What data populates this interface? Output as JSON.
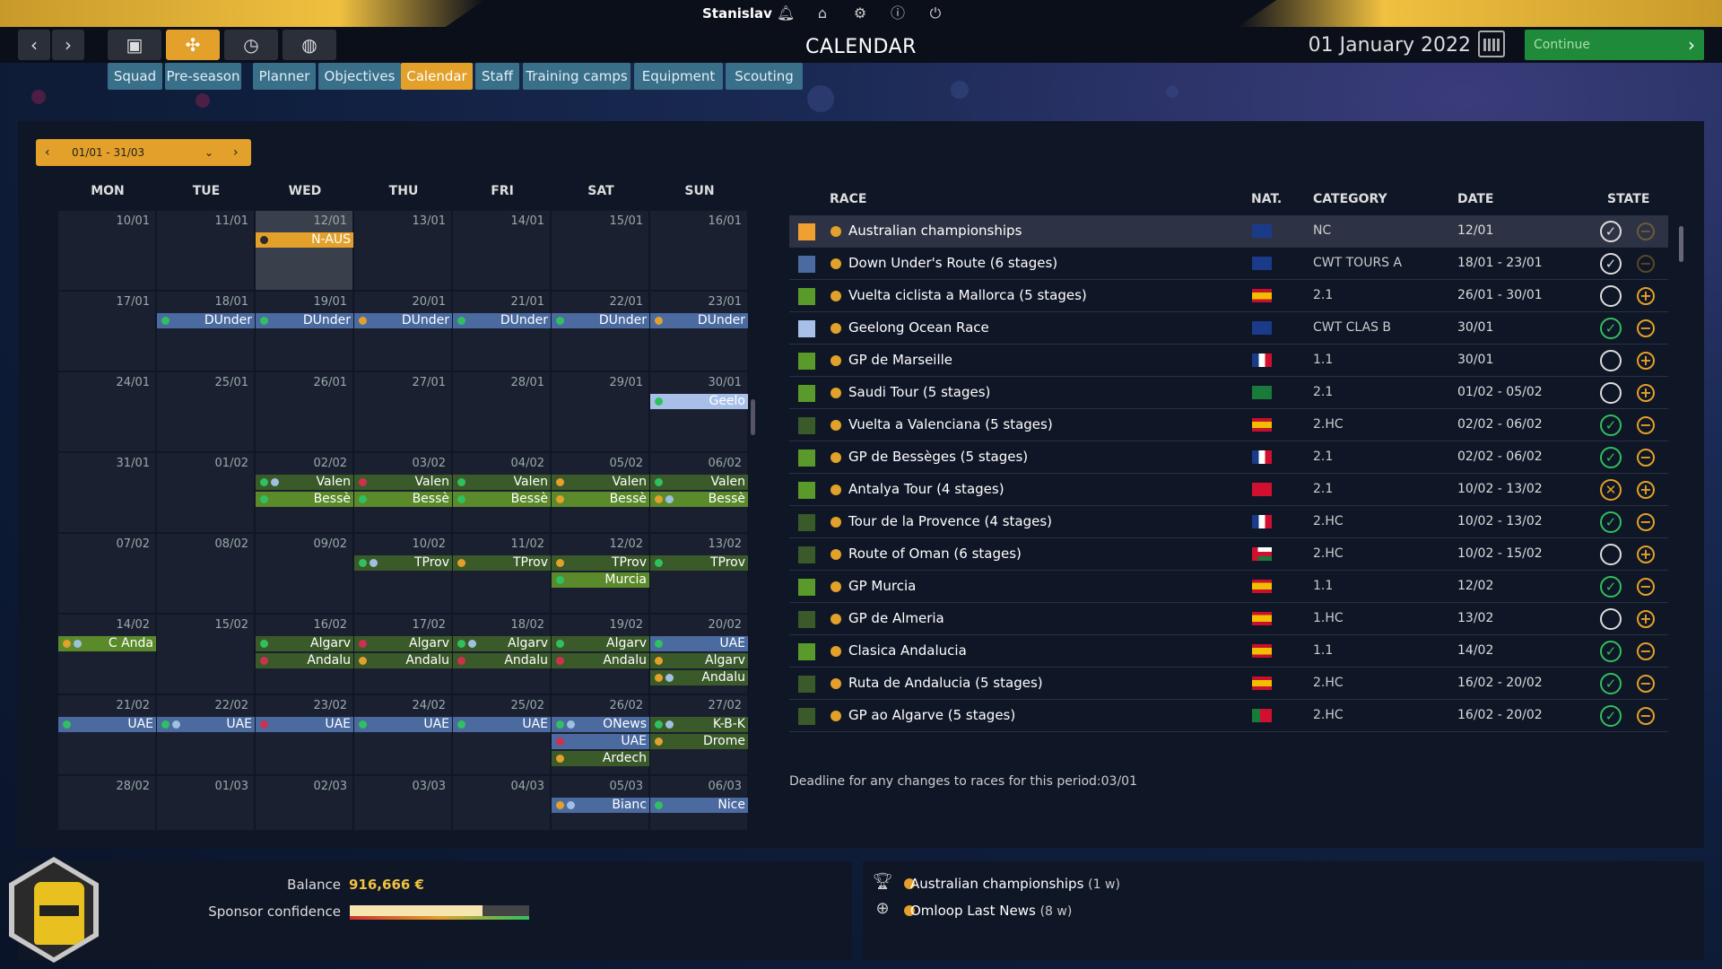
{
  "topbar": {
    "user": "Stanislav",
    "icons": [
      "bell-icon",
      "home-icon",
      "gear-icon",
      "info-icon",
      "power-icon"
    ]
  },
  "nav": {
    "buttons": [
      "back-icon",
      "forward-icon",
      "briefcase-icon",
      "team-icon",
      "stopwatch-icon",
      "globe-icon"
    ],
    "active": "team-icon"
  },
  "page": {
    "title": "CALENDAR",
    "date": "01 January 2022",
    "continue_label": "Continue"
  },
  "tabs": [
    {
      "label": "Squad"
    },
    {
      "label": "Pre-season"
    },
    {
      "label": "Planner"
    },
    {
      "label": "Objectives"
    },
    {
      "label": "Calendar",
      "active": true
    },
    {
      "label": "Staff"
    },
    {
      "label": "Training camps"
    },
    {
      "label": "Equipment"
    },
    {
      "label": "Scouting"
    }
  ],
  "calendar": {
    "period": "01/01 - 31/03",
    "weekdays": [
      "MON",
      "TUE",
      "WED",
      "THU",
      "FRI",
      "SAT",
      "SUN"
    ],
    "weeks": [
      [
        "10/01",
        "11/01",
        "12/01",
        "13/01",
        "14/01",
        "15/01",
        "16/01"
      ],
      [
        "17/01",
        "18/01",
        "19/01",
        "20/01",
        "21/01",
        "22/01",
        "23/01"
      ],
      [
        "24/01",
        "25/01",
        "26/01",
        "27/01",
        "28/01",
        "29/01",
        "30/01"
      ],
      [
        "31/01",
        "01/02",
        "02/02",
        "03/02",
        "04/02",
        "05/02",
        "06/02"
      ],
      [
        "07/02",
        "08/02",
        "09/02",
        "10/02",
        "11/02",
        "12/02",
        "13/02"
      ],
      [
        "14/02",
        "15/02",
        "16/02",
        "17/02",
        "18/02",
        "19/02",
        "20/02"
      ],
      [
        "21/02",
        "22/02",
        "23/02",
        "24/02",
        "25/02",
        "26/02",
        "27/02"
      ],
      [
        "28/02",
        "01/03",
        "02/03",
        "03/03",
        "04/03",
        "05/03",
        "06/03"
      ]
    ],
    "today": [
      0,
      2
    ],
    "events": [
      {
        "w": 0,
        "d": 2,
        "row": 0,
        "label": "N-AUS",
        "color": "#e3a02a",
        "dots": [
          "#2a2a2a"
        ]
      },
      {
        "w": 1,
        "d": 1,
        "row": 0,
        "label": "DUnder",
        "color": "#4a6aa0",
        "dots": [
          "#30c060"
        ]
      },
      {
        "w": 1,
        "d": 2,
        "row": 0,
        "label": "DUnder",
        "color": "#4a6aa0",
        "dots": [
          "#30c060"
        ]
      },
      {
        "w": 1,
        "d": 3,
        "row": 0,
        "label": "DUnder",
        "color": "#4a6aa0",
        "dots": [
          "#e3a02a"
        ]
      },
      {
        "w": 1,
        "d": 4,
        "row": 0,
        "label": "DUnder",
        "color": "#4a6aa0",
        "dots": [
          "#30c060"
        ]
      },
      {
        "w": 1,
        "d": 5,
        "row": 0,
        "label": "DUnder",
        "color": "#4a6aa0",
        "dots": [
          "#30c060"
        ]
      },
      {
        "w": 1,
        "d": 6,
        "row": 0,
        "label": "DUnder",
        "color": "#4a6aa0",
        "dots": [
          "#e3a02a"
        ]
      },
      {
        "w": 2,
        "d": 6,
        "row": 0,
        "label": "Geelo",
        "color": "#a8c0e8",
        "dots": [
          "#30c060"
        ]
      },
      {
        "w": 3,
        "d": 2,
        "row": 0,
        "label": "Valen",
        "color": "#3a5a2a",
        "dots": [
          "#30c060",
          "#a0c0e0"
        ]
      },
      {
        "w": 3,
        "d": 3,
        "row": 0,
        "label": "Valen",
        "color": "#3a5a2a",
        "dots": [
          "#d03050"
        ]
      },
      {
        "w": 3,
        "d": 4,
        "row": 0,
        "label": "Valen",
        "color": "#3a5a2a",
        "dots": [
          "#30c060"
        ]
      },
      {
        "w": 3,
        "d": 5,
        "row": 0,
        "label": "Valen",
        "color": "#3a5a2a",
        "dots": [
          "#e3a02a"
        ]
      },
      {
        "w": 3,
        "d": 6,
        "row": 0,
        "label": "Valen",
        "color": "#3a5a2a",
        "dots": [
          "#30c060"
        ]
      },
      {
        "w": 3,
        "d": 2,
        "row": 1,
        "label": "Bessè",
        "color": "#5a8a2a",
        "dots": [
          "#30c060"
        ]
      },
      {
        "w": 3,
        "d": 3,
        "row": 1,
        "label": "Bessè",
        "color": "#5a8a2a",
        "dots": [
          "#30c060"
        ]
      },
      {
        "w": 3,
        "d": 4,
        "row": 1,
        "label": "Bessè",
        "color": "#5a8a2a",
        "dots": [
          "#30c060"
        ]
      },
      {
        "w": 3,
        "d": 5,
        "row": 1,
        "label": "Bessè",
        "color": "#5a8a2a",
        "dots": [
          "#e3a02a"
        ]
      },
      {
        "w": 3,
        "d": 6,
        "row": 1,
        "label": "Bessè",
        "color": "#5a8a2a",
        "dots": [
          "#e3a02a",
          "#a0c0e0"
        ]
      },
      {
        "w": 4,
        "d": 3,
        "row": 0,
        "label": "TProv",
        "color": "#3a5a2a",
        "dots": [
          "#30c060",
          "#a0c0e0"
        ]
      },
      {
        "w": 4,
        "d": 4,
        "row": 0,
        "label": "TProv",
        "color": "#3a5a2a",
        "dots": [
          "#e3a02a"
        ]
      },
      {
        "w": 4,
        "d": 5,
        "row": 0,
        "label": "TProv",
        "color": "#3a5a2a",
        "dots": [
          "#e3a02a"
        ]
      },
      {
        "w": 4,
        "d": 6,
        "row": 0,
        "label": "TProv",
        "color": "#3a5a2a",
        "dots": [
          "#30c060"
        ]
      },
      {
        "w": 4,
        "d": 5,
        "row": 1,
        "label": "Murcia",
        "color": "#5a8a2a",
        "dots": [
          "#30c060"
        ]
      },
      {
        "w": 5,
        "d": 0,
        "row": 0,
        "label": "C Anda",
        "color": "#5a8a2a",
        "dots": [
          "#e3a02a",
          "#a0c0e0"
        ]
      },
      {
        "w": 5,
        "d": 2,
        "row": 0,
        "label": "Algarv",
        "color": "#3a5a2a",
        "dots": [
          "#30c060"
        ]
      },
      {
        "w": 5,
        "d": 3,
        "row": 0,
        "label": "Algarv",
        "color": "#3a5a2a",
        "dots": [
          "#d03050"
        ]
      },
      {
        "w": 5,
        "d": 4,
        "row": 0,
        "label": "Algarv",
        "color": "#3a5a2a",
        "dots": [
          "#30c060",
          "#a0c0e0"
        ]
      },
      {
        "w": 5,
        "d": 5,
        "row": 0,
        "label": "Algarv",
        "color": "#3a5a2a",
        "dots": [
          "#30c060"
        ]
      },
      {
        "w": 5,
        "d": 6,
        "row": 0,
        "label": "UAE",
        "color": "#4a6aa0",
        "dots": [
          "#30c060"
        ]
      },
      {
        "w": 5,
        "d": 2,
        "row": 1,
        "label": "Andalu",
        "color": "#3a5a2a",
        "dots": [
          "#d03050"
        ]
      },
      {
        "w": 5,
        "d": 3,
        "row": 1,
        "label": "Andalu",
        "color": "#3a5a2a",
        "dots": [
          "#e3a02a"
        ]
      },
      {
        "w": 5,
        "d": 4,
        "row": 1,
        "label": "Andalu",
        "color": "#3a5a2a",
        "dots": [
          "#d03050"
        ]
      },
      {
        "w": 5,
        "d": 5,
        "row": 1,
        "label": "Andalu",
        "color": "#3a5a2a",
        "dots": [
          "#d03050"
        ]
      },
      {
        "w": 5,
        "d": 6,
        "row": 1,
        "label": "Algarv",
        "color": "#3a5a2a",
        "dots": [
          "#e3a02a"
        ]
      },
      {
        "w": 5,
        "d": 6,
        "row": 2,
        "label": "Andalu",
        "color": "#3a5a2a",
        "dots": [
          "#e3a02a",
          "#a0c0e0"
        ]
      },
      {
        "w": 6,
        "d": 0,
        "row": 0,
        "label": "UAE",
        "color": "#4a6aa0",
        "dots": [
          "#30c060"
        ]
      },
      {
        "w": 6,
        "d": 1,
        "row": 0,
        "label": "UAE",
        "color": "#4a6aa0",
        "dots": [
          "#30c060",
          "#a0c0e0"
        ]
      },
      {
        "w": 6,
        "d": 2,
        "row": 0,
        "label": "UAE",
        "color": "#4a6aa0",
        "dots": [
          "#d03050"
        ]
      },
      {
        "w": 6,
        "d": 3,
        "row": 0,
        "label": "UAE",
        "color": "#4a6aa0",
        "dots": [
          "#30c060"
        ]
      },
      {
        "w": 6,
        "d": 4,
        "row": 0,
        "label": "UAE",
        "color": "#4a6aa0",
        "dots": [
          "#30c060"
        ]
      },
      {
        "w": 6,
        "d": 5,
        "row": 0,
        "label": "ONews",
        "color": "#4a6aa0",
        "dots": [
          "#30c060",
          "#a0c0e0"
        ]
      },
      {
        "w": 6,
        "d": 6,
        "row": 0,
        "label": "K-B-K",
        "color": "#3a5a2a",
        "dots": [
          "#30c060",
          "#a0c0e0"
        ]
      },
      {
        "w": 6,
        "d": 5,
        "row": 1,
        "label": "UAE",
        "color": "#4a6aa0",
        "dots": [
          "#d03050"
        ]
      },
      {
        "w": 6,
        "d": 6,
        "row": 1,
        "label": "Drome",
        "color": "#3a5a2a",
        "dots": [
          "#e3a02a"
        ]
      },
      {
        "w": 6,
        "d": 5,
        "row": 2,
        "label": "Ardech",
        "color": "#3a5a2a",
        "dots": [
          "#e3a02a"
        ]
      },
      {
        "w": 7,
        "d": 5,
        "row": 0,
        "label": "Bianc",
        "color": "#4a6aa0",
        "dots": [
          "#e3a02a",
          "#a0c0e0"
        ]
      },
      {
        "w": 7,
        "d": 6,
        "row": 0,
        "label": "Nice",
        "color": "#4a6aa0",
        "dots": [
          "#30c060"
        ]
      }
    ]
  },
  "races": {
    "headers": {
      "race": "RACE",
      "nat": "NAT.",
      "category": "CATEGORY",
      "date": "DATE",
      "state": "STATE"
    },
    "rows": [
      {
        "color": "#f0a030",
        "name": "Australian championships",
        "flag": "AUS",
        "cat": "NC",
        "date": "12/01",
        "state": "check",
        "action": "minus",
        "selected": true
      },
      {
        "color": "#4a6aa0",
        "name": "Down Under's Route (6 stages)",
        "flag": "AUS",
        "cat": "CWT TOURS A",
        "date": "18/01 - 23/01",
        "state": "check",
        "action": "minus"
      },
      {
        "color": "#5a9a2a",
        "name": "Vuelta ciclista a Mallorca (5 stages)",
        "flag": "ESP",
        "cat": "2.1",
        "date": "26/01 - 30/01",
        "state": "empty",
        "action": "plus"
      },
      {
        "color": "#a8c0e8",
        "name": "Geelong Ocean Race",
        "flag": "AUS",
        "cat": "CWT CLAS B",
        "date": "30/01",
        "state": "green",
        "action": "minus"
      },
      {
        "color": "#5a9a2a",
        "name": "GP de Marseille",
        "flag": "FRA",
        "cat": "1.1",
        "date": "30/01",
        "state": "empty",
        "action": "plus"
      },
      {
        "color": "#5a9a2a",
        "name": "Saudi Tour (5 stages)",
        "flag": "KSA",
        "cat": "2.1",
        "date": "01/02 - 05/02",
        "state": "empty",
        "action": "plus"
      },
      {
        "color": "#3a5a2a",
        "name": "Vuelta a Valenciana (5 stages)",
        "flag": "ESP",
        "cat": "2.HC",
        "date": "02/02 - 06/02",
        "state": "green",
        "action": "minus"
      },
      {
        "color": "#5a9a2a",
        "name": "GP de Bessèges (5 stages)",
        "flag": "FRA",
        "cat": "2.1",
        "date": "02/02 - 06/02",
        "state": "green",
        "action": "minus"
      },
      {
        "color": "#5a9a2a",
        "name": "Antalya Tour (4 stages)",
        "flag": "TUR",
        "cat": "2.1",
        "date": "10/02 - 13/02",
        "state": "cross",
        "action": "plus"
      },
      {
        "color": "#3a5a2a",
        "name": "Tour de la Provence (4 stages)",
        "flag": "FRA",
        "cat": "2.HC",
        "date": "10/02 - 13/02",
        "state": "green",
        "action": "minus"
      },
      {
        "color": "#3a5a2a",
        "name": "Route of Oman (6 stages)",
        "flag": "OMA",
        "cat": "2.HC",
        "date": "10/02 - 15/02",
        "state": "empty",
        "action": "plus"
      },
      {
        "color": "#5a9a2a",
        "name": "GP Murcia",
        "flag": "ESP",
        "cat": "1.1",
        "date": "12/02",
        "state": "green",
        "action": "minus"
      },
      {
        "color": "#3a5a2a",
        "name": "GP de Almeria",
        "flag": "ESP",
        "cat": "1.HC",
        "date": "13/02",
        "state": "empty",
        "action": "plus"
      },
      {
        "color": "#5a9a2a",
        "name": "Clasica Andalucia",
        "flag": "ESP",
        "cat": "1.1",
        "date": "14/02",
        "state": "green",
        "action": "minus"
      },
      {
        "color": "#3a5a2a",
        "name": "Ruta de Andalucia (5 stages)",
        "flag": "ESP",
        "cat": "2.HC",
        "date": "16/02 - 20/02",
        "state": "green",
        "action": "minus"
      },
      {
        "color": "#3a5a2a",
        "name": "GP ao Algarve (5 stages)",
        "flag": "POR",
        "cat": "2.HC",
        "date": "16/02 - 20/02",
        "state": "green",
        "action": "minus"
      }
    ],
    "deadline": "Deadline for any changes to races for this period:03/01"
  },
  "footer": {
    "balance_label": "Balance",
    "balance": "916,666 €",
    "sponsor_label": "Sponsor confidence",
    "sponsor_level": 0.74,
    "news": [
      {
        "title": "Australian championships",
        "sub": "(1 w)",
        "icon": "trophy-icon"
      },
      {
        "title": "Omloop Last News",
        "sub": "(8 w)",
        "icon": "helmet-icon"
      }
    ]
  }
}
